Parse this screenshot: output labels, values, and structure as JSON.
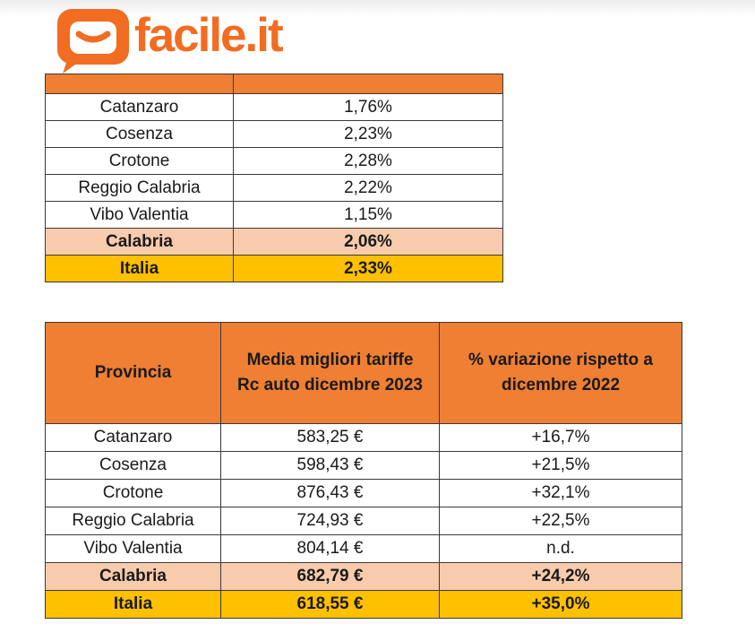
{
  "brand": {
    "name": "facile.it",
    "color": "#f26c21",
    "icon": "speech-bubble-smile-logo"
  },
  "colors": {
    "header_orange": "#ef7f33",
    "region_peach": "#f8cbad",
    "italy_gold": "#ffc000"
  },
  "table1": {
    "header": [
      "",
      ""
    ],
    "rows": [
      {
        "provincia": "Catanzaro",
        "value": "1,76%"
      },
      {
        "provincia": "Cosenza",
        "value": "2,23%"
      },
      {
        "provincia": "Crotone",
        "value": "2,28%"
      },
      {
        "provincia": "Reggio Calabria",
        "value": "2,22%"
      },
      {
        "provincia": "Vibo Valentia",
        "value": "1,15%"
      }
    ],
    "region": {
      "provincia": "Calabria",
      "value": "2,06%"
    },
    "italy": {
      "provincia": "Italia",
      "value": "2,33%"
    }
  },
  "table2": {
    "headers": {
      "col1": "Provincia",
      "col2_line1": "Media migliori tariffe",
      "col2_line2": "Rc auto dicembre 2023",
      "col3_line1": "% variazione rispetto a",
      "col3_line2": "dicembre 2022"
    },
    "rows": [
      {
        "provincia": "Catanzaro",
        "media": "583,25 €",
        "variazione": "+16,7%"
      },
      {
        "provincia": "Cosenza",
        "media": "598,43 €",
        "variazione": "+21,5%"
      },
      {
        "provincia": "Crotone",
        "media": "876,43 €",
        "variazione": "+32,1%"
      },
      {
        "provincia": "Reggio Calabria",
        "media": "724,93 €",
        "variazione": "+22,5%"
      },
      {
        "provincia": "Vibo Valentia",
        "media": "804,14 €",
        "variazione": "n.d."
      }
    ],
    "region": {
      "provincia": "Calabria",
      "media": "682,79 €",
      "variazione": "+24,2%"
    },
    "italy": {
      "provincia": "Italia",
      "media": "618,55 €",
      "variazione": "+35,0%"
    }
  }
}
